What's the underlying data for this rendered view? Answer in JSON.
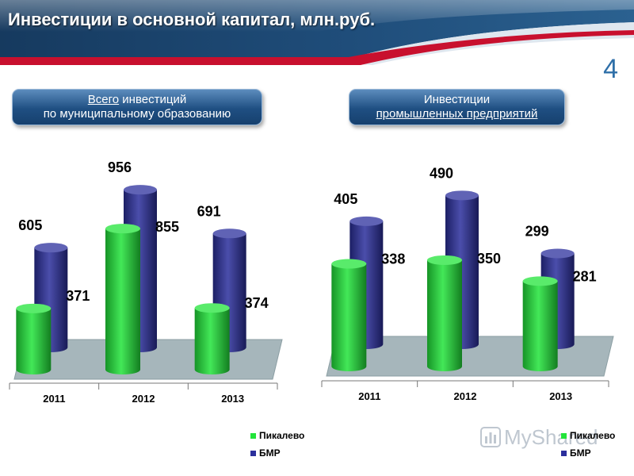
{
  "header": {
    "title": "Инвестиции в основной капитал, млн.руб.",
    "page_number": "4"
  },
  "captions": {
    "left": {
      "line1_underlined": "Всего",
      "line1_rest": " инвестиций",
      "line2": "по муниципальному образованию"
    },
    "right": {
      "line1": "Инвестиции",
      "line2_underlined": "промышленных предприятий"
    }
  },
  "colors": {
    "pikalevo": "#22e43a",
    "bmr": "#2b2f9c",
    "floor": "#a6b6bb",
    "header": "#1b3f66",
    "accent": "#c8102e"
  },
  "watermark": {
    "text": "MyShared"
  },
  "chart_data": [
    {
      "type": "bar",
      "categories": [
        "2011",
        "2012",
        "2013"
      ],
      "series": [
        {
          "name": "Пикалево",
          "values": [
            371,
            855,
            374
          ]
        },
        {
          "name": "БМР",
          "values": [
            605,
            956,
            691
          ]
        }
      ],
      "legend": "bottom-right"
    },
    {
      "type": "bar",
      "categories": [
        "2011",
        "2012",
        "2013"
      ],
      "series": [
        {
          "name": "Пикалево",
          "values": [
            338,
            350,
            281
          ]
        },
        {
          "name": "БМР",
          "values": [
            405,
            490,
            299
          ]
        }
      ],
      "legend": "bottom-right"
    }
  ]
}
